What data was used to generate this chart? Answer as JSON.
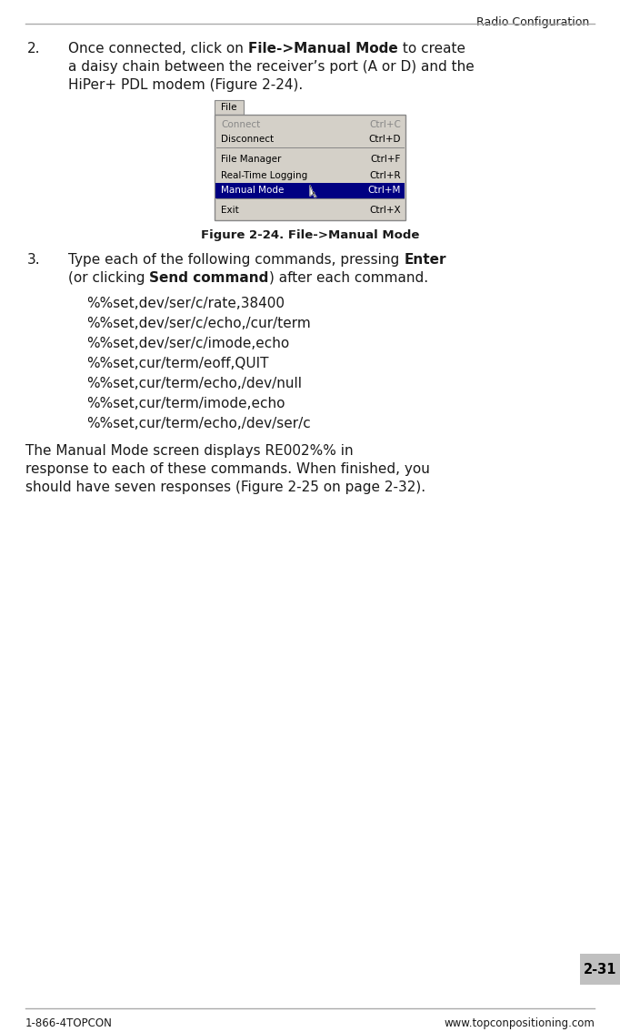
{
  "title": "Radio Configuration",
  "header_line_color": "#aaaaaa",
  "footer_line_color": "#aaaaaa",
  "footer_left": "1-866-4TOPCON",
  "footer_right": "www.topconpositioning.com",
  "page_number": "2-31",
  "page_bg": "#ffffff",
  "body_text_color": "#1a1a1a",
  "commands": [
    "%%set,dev/ser/c/rate,38400",
    "%%set,dev/ser/c/echo,/cur/term",
    "%%set,dev/ser/c/imode,echo",
    "%%set,cur/term/eoff,QUIT",
    "%%set,cur/term/echo,/dev/null",
    "%%set,cur/term/imode,echo",
    "%%set,cur/term/echo,/dev/ser/c"
  ],
  "menu_items": [
    {
      "label": "Connect",
      "shortcut": "Ctrl+C",
      "grayed": true,
      "separator_after": false
    },
    {
      "label": "Disconnect",
      "shortcut": "Ctrl+D",
      "grayed": false,
      "separator_after": true
    },
    {
      "label": "File Manager",
      "shortcut": "Ctrl+F",
      "grayed": false,
      "separator_after": false
    },
    {
      "label": "Real-Time Logging",
      "shortcut": "Ctrl+R",
      "grayed": false,
      "separator_after": false
    },
    {
      "label": "Manual Mode",
      "shortcut": "Ctrl+M",
      "grayed": false,
      "highlighted": true,
      "separator_after": true
    },
    {
      "label": "Exit",
      "shortcut": "Ctrl+X",
      "grayed": false,
      "separator_after": false
    }
  ],
  "menu_bg": "#d4d0c8",
  "menu_border": "#888888",
  "menu_highlight_bg": "#000082",
  "menu_highlight_fg": "#ffffff",
  "menu_grayed_fg": "#888888",
  "menu_fg": "#000000"
}
